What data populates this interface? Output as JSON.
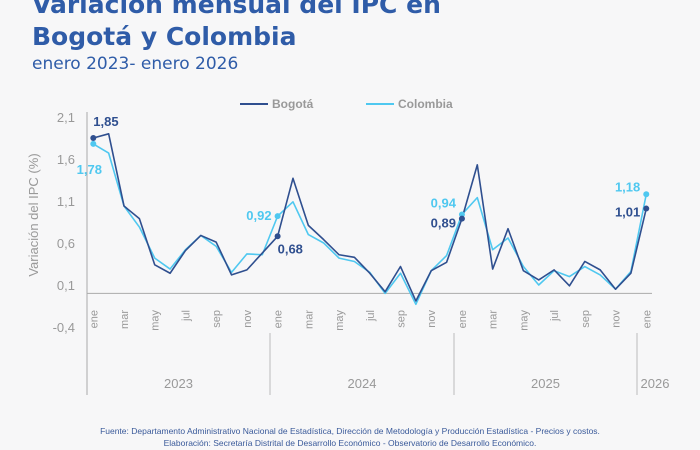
{
  "title_line1": "Variación mensual del IPC en",
  "title_line2": "Bogotá y Colombia",
  "subtitle": "enero 2023- enero 2026",
  "footer": {
    "source": "Fuente: Departamento Administrativo Nacional de Estadística, Dirección de Metodología y Producción Estadística - Precios y costos.",
    "elaboration": "Elaboración: Secretaría Distrital de Desarrollo Económico - Observatorio de Desarrollo Económico."
  },
  "chart_data": {
    "type": "line",
    "ylabel": "Variación del IPC (%)",
    "ylim": [
      -0.4,
      2.1
    ],
    "yticks": [
      "2,1",
      "1,6",
      "1,1",
      "0,6",
      "0,1",
      "-0,4"
    ],
    "ytick_values": [
      2.1,
      1.6,
      1.1,
      0.6,
      0.1,
      -0.4
    ],
    "month_labels": [
      "ene",
      "mar",
      "may",
      "jul",
      "sep",
      "nov",
      "ene",
      "mar",
      "may",
      "jul",
      "sep",
      "nov",
      "ene",
      "mar",
      "may",
      "jul",
      "sep",
      "nov",
      "ene"
    ],
    "years": [
      "2023",
      "2024",
      "2025",
      "2026"
    ],
    "legend_position": "top",
    "series": [
      {
        "name": "Bogotá",
        "color": "#2f4f8f",
        "values": [
          1.85,
          1.9,
          1.04,
          0.89,
          0.34,
          0.24,
          0.51,
          0.69,
          0.61,
          0.22,
          0.28,
          0.48,
          0.68,
          1.37,
          0.81,
          0.64,
          0.46,
          0.43,
          0.24,
          0.02,
          0.32,
          -0.09,
          0.27,
          0.37,
          0.89,
          1.53,
          0.29,
          0.77,
          0.27,
          0.16,
          0.28,
          0.09,
          0.38,
          0.28,
          0.05,
          0.24,
          1.01
        ]
      },
      {
        "name": "Colombia",
        "color": "#4fc8f0",
        "values": [
          1.78,
          1.67,
          1.04,
          0.79,
          0.42,
          0.29,
          0.52,
          0.69,
          0.56,
          0.25,
          0.47,
          0.46,
          0.92,
          1.09,
          0.7,
          0.6,
          0.42,
          0.38,
          0.25,
          0.0,
          0.24,
          -0.13,
          0.27,
          0.45,
          0.94,
          1.14,
          0.52,
          0.66,
          0.32,
          0.1,
          0.27,
          0.2,
          0.32,
          0.22,
          0.05,
          0.26,
          1.18
        ]
      }
    ],
    "annotations": [
      {
        "series": "Bogotá",
        "index": 0,
        "label": "1,85"
      },
      {
        "series": "Colombia",
        "index": 0,
        "label": "1,78"
      },
      {
        "series": "Colombia",
        "index": 12,
        "label": "0,92"
      },
      {
        "series": "Bogotá",
        "index": 12,
        "label": "0,68"
      },
      {
        "series": "Colombia",
        "index": 24,
        "label": "0,94"
      },
      {
        "series": "Bogotá",
        "index": 24,
        "label": "0,89"
      },
      {
        "series": "Colombia",
        "index": 36,
        "label": "1,18"
      },
      {
        "series": "Bogotá",
        "index": 36,
        "label": "1,01"
      }
    ]
  }
}
